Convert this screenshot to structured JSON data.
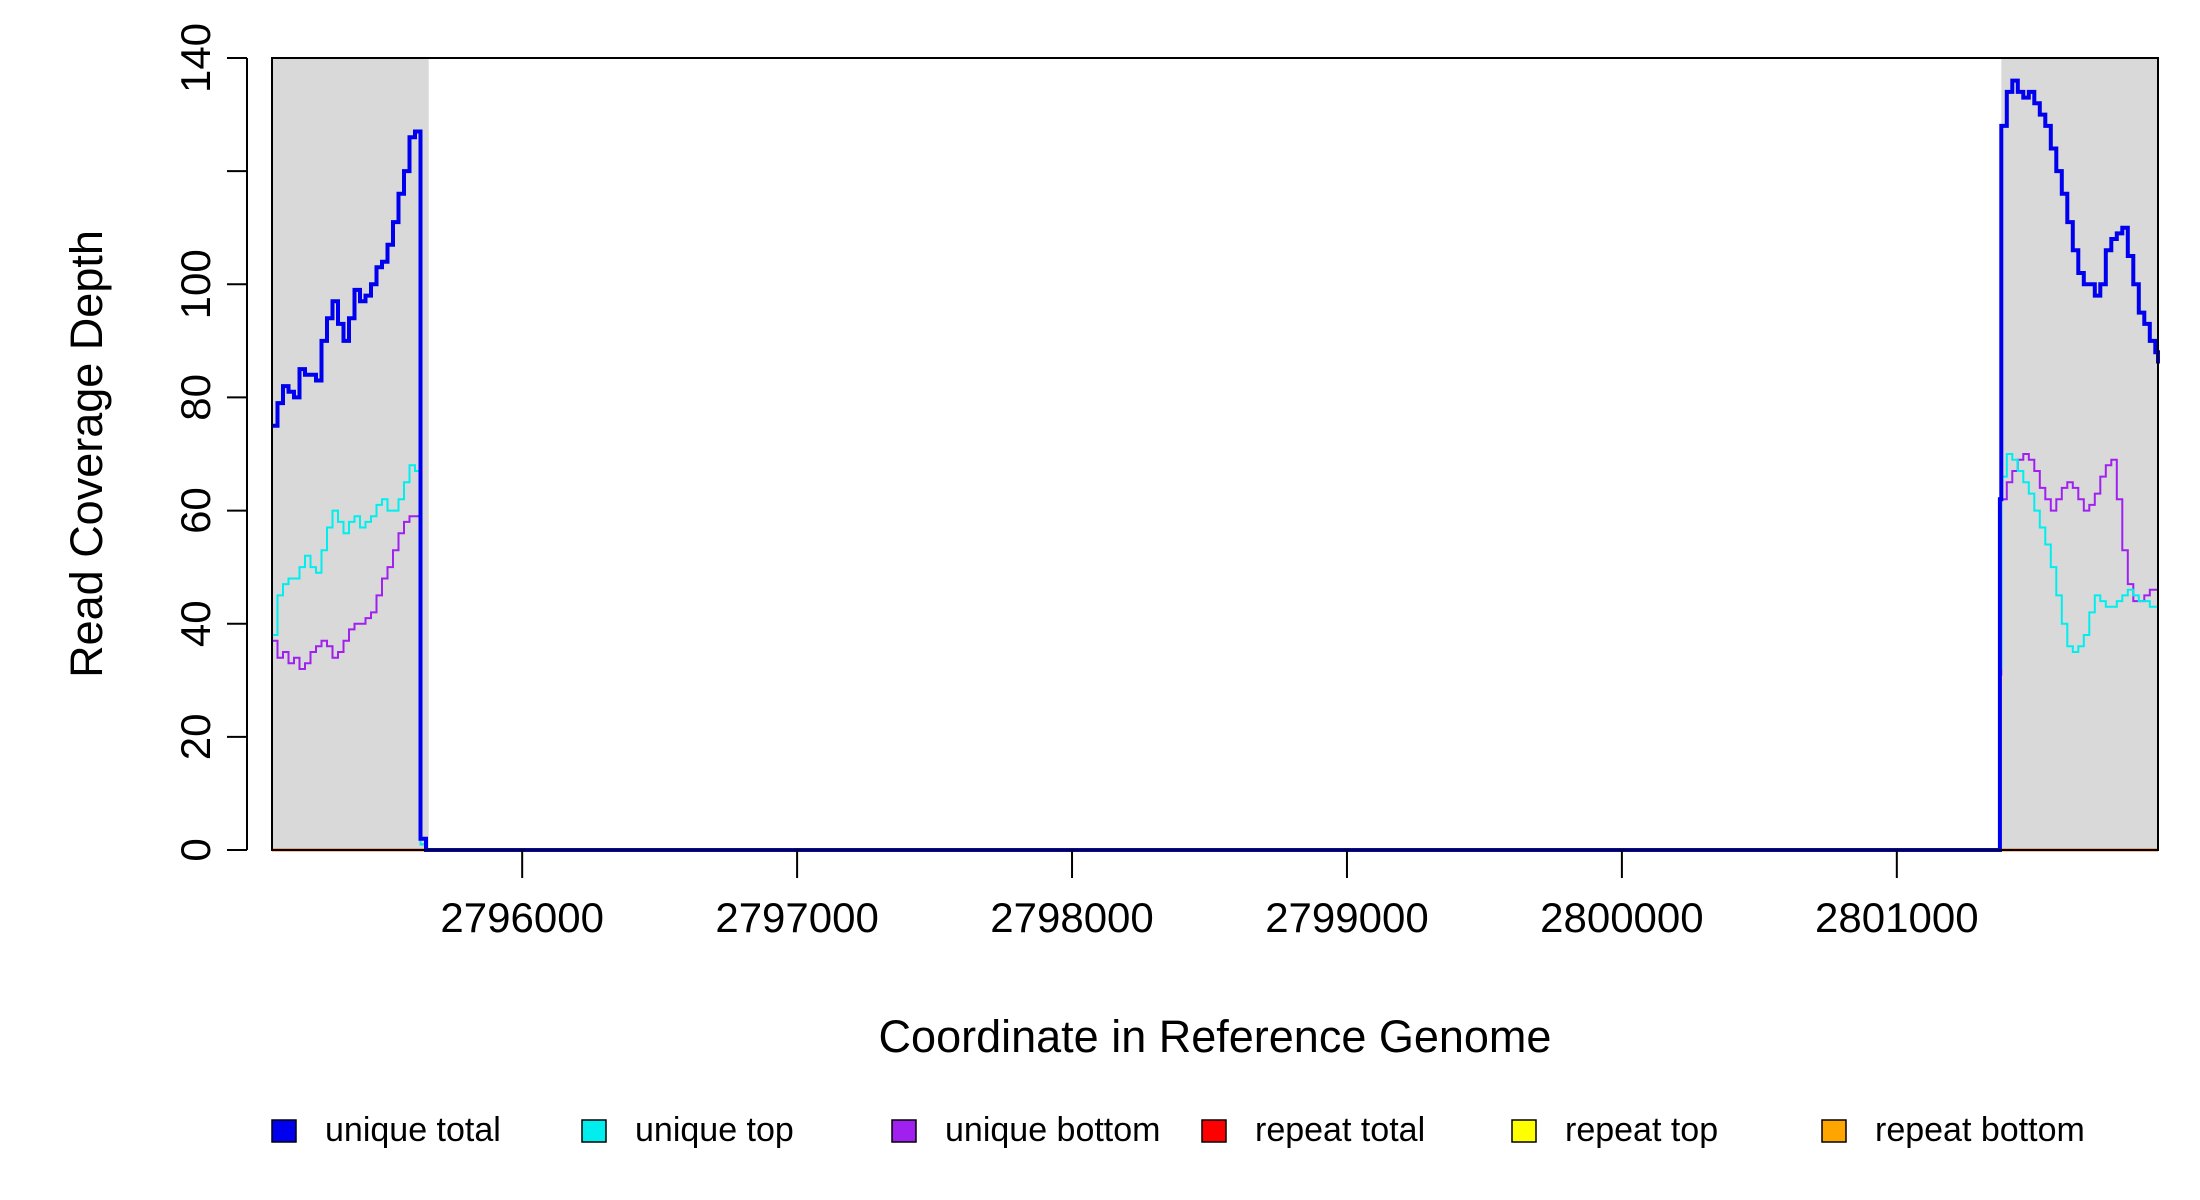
{
  "chart_data": {
    "type": "line",
    "title": "",
    "xlabel": "Coordinate in Reference Genome",
    "ylabel": "Read Coverage Depth",
    "xlim": [
      2795090,
      2801950
    ],
    "ylim": [
      0,
      140
    ],
    "x_ticks": [
      {
        "value": 2796000,
        "label": "2796000"
      },
      {
        "value": 2797000,
        "label": "2797000"
      },
      {
        "value": 2798000,
        "label": "2798000"
      },
      {
        "value": 2799000,
        "label": "2799000"
      },
      {
        "value": 2800000,
        "label": "2800000"
      },
      {
        "value": 2801000,
        "label": "2801000"
      }
    ],
    "y_ticks": [
      {
        "value": 0,
        "label": "0"
      },
      {
        "value": 20,
        "label": "20"
      },
      {
        "value": 40,
        "label": "40"
      },
      {
        "value": 60,
        "label": "60"
      },
      {
        "value": 80,
        "label": "80"
      },
      {
        "value": 100,
        "label": "100"
      },
      {
        "value": 120,
        "label": ""
      },
      {
        "value": 140,
        "label": "140"
      }
    ],
    "shaded_regions": [
      {
        "x0": 2795090,
        "x1": 2795660,
        "color": "#d9d9d9"
      },
      {
        "x0": 2801380,
        "x1": 2801950,
        "color": "#d9d9d9"
      }
    ],
    "grid": false,
    "legend_position": "bottom",
    "series": [
      {
        "name": "unique total",
        "color": "#0000ee",
        "x": [
          2795090,
          2795110,
          2795130,
          2795150,
          2795170,
          2795190,
          2795210,
          2795230,
          2795250,
          2795270,
          2795290,
          2795310,
          2795330,
          2795350,
          2795370,
          2795390,
          2795410,
          2795430,
          2795450,
          2795470,
          2795490,
          2795510,
          2795530,
          2795550,
          2795570,
          2795590,
          2795610,
          2795630,
          2795650,
          2795660,
          2795665,
          2795700,
          2796000,
          2797000,
          2798000,
          2799000,
          2800000,
          2801000,
          2801370,
          2801375,
          2801380,
          2801400,
          2801420,
          2801440,
          2801460,
          2801480,
          2801500,
          2801520,
          2801540,
          2801560,
          2801580,
          2801600,
          2801620,
          2801640,
          2801660,
          2801680,
          2801700,
          2801720,
          2801740,
          2801760,
          2801780,
          2801800,
          2801820,
          2801840,
          2801860,
          2801880,
          2801900,
          2801920,
          2801940,
          2801950
        ],
        "values": [
          75,
          79,
          82,
          81,
          80,
          85,
          84,
          84,
          83,
          90,
          94,
          97,
          93,
          90,
          94,
          99,
          97,
          98,
          100,
          103,
          104,
          107,
          111,
          116,
          120,
          126,
          127,
          2,
          0,
          0,
          0,
          0,
          0,
          0,
          0,
          0,
          0,
          0,
          0,
          62,
          128,
          134,
          136,
          134,
          133,
          134,
          132,
          130,
          128,
          124,
          120,
          116,
          111,
          106,
          102,
          100,
          100,
          98,
          100,
          106,
          108,
          109,
          110,
          105,
          100,
          95,
          93,
          90,
          88,
          86
        ]
      },
      {
        "name": "unique top",
        "color": "#00eeee",
        "x": [
          2795090,
          2795110,
          2795130,
          2795150,
          2795170,
          2795190,
          2795210,
          2795230,
          2795250,
          2795270,
          2795290,
          2795310,
          2795330,
          2795350,
          2795370,
          2795390,
          2795410,
          2795430,
          2795450,
          2795470,
          2795490,
          2795510,
          2795530,
          2795550,
          2795570,
          2795590,
          2795610,
          2795630,
          2795650,
          2795660,
          2795665,
          2795700,
          2796000,
          2797000,
          2798000,
          2799000,
          2800000,
          2801000,
          2801370,
          2801375,
          2801380,
          2801400,
          2801420,
          2801440,
          2801460,
          2801480,
          2801500,
          2801520,
          2801540,
          2801560,
          2801580,
          2801600,
          2801620,
          2801640,
          2801660,
          2801680,
          2801700,
          2801720,
          2801740,
          2801760,
          2801780,
          2801800,
          2801820,
          2801840,
          2801860,
          2801880,
          2801900,
          2801920,
          2801940,
          2801950
        ],
        "values": [
          38,
          45,
          47,
          48,
          48,
          50,
          52,
          50,
          49,
          53,
          57,
          60,
          58,
          56,
          58,
          59,
          57,
          58,
          59,
          61,
          62,
          60,
          60,
          62,
          65,
          68,
          67,
          1,
          0,
          0,
          0,
          0,
          0,
          0,
          0,
          0,
          0,
          0,
          0,
          32,
          66,
          70,
          69,
          67,
          65,
          63,
          60,
          57,
          54,
          50,
          45,
          40,
          36,
          35,
          36,
          38,
          42,
          45,
          44,
          43,
          43,
          44,
          45,
          46,
          45,
          44,
          44,
          43,
          43,
          42
        ]
      },
      {
        "name": "unique bottom",
        "color": "#a020f0",
        "x": [
          2795090,
          2795110,
          2795130,
          2795150,
          2795170,
          2795190,
          2795210,
          2795230,
          2795250,
          2795270,
          2795290,
          2795310,
          2795330,
          2795350,
          2795370,
          2795390,
          2795410,
          2795430,
          2795450,
          2795470,
          2795490,
          2795510,
          2795530,
          2795550,
          2795570,
          2795590,
          2795610,
          2795630,
          2795650,
          2795660,
          2795665,
          2795700,
          2796000,
          2797000,
          2798000,
          2799000,
          2800000,
          2801000,
          2801370,
          2801375,
          2801380,
          2801400,
          2801420,
          2801440,
          2801460,
          2801480,
          2801500,
          2801520,
          2801540,
          2801560,
          2801580,
          2801600,
          2801620,
          2801640,
          2801660,
          2801680,
          2801700,
          2801720,
          2801740,
          2801760,
          2801780,
          2801800,
          2801820,
          2801840,
          2801860,
          2801880,
          2801900,
          2801920,
          2801940,
          2801950
        ],
        "values": [
          37,
          34,
          35,
          33,
          34,
          32,
          33,
          35,
          36,
          37,
          36,
          34,
          35,
          37,
          39,
          40,
          40,
          41,
          42,
          45,
          48,
          50,
          53,
          56,
          58,
          59,
          59,
          1,
          0,
          0,
          0,
          0,
          0,
          0,
          0,
          0,
          0,
          0,
          0,
          31,
          62,
          65,
          67,
          69,
          70,
          69,
          67,
          64,
          62,
          60,
          62,
          64,
          65,
          64,
          62,
          60,
          61,
          63,
          66,
          68,
          69,
          62,
          53,
          47,
          44,
          44,
          45,
          46,
          46,
          45
        ]
      },
      {
        "name": "repeat total",
        "color": "#ff0000",
        "x": [
          2795090,
          2801950
        ],
        "values": [
          0,
          0
        ]
      },
      {
        "name": "repeat top",
        "color": "#ffff00",
        "x": [
          2795090,
          2801950
        ],
        "values": [
          0,
          0
        ]
      },
      {
        "name": "repeat bottom",
        "color": "#ffa500",
        "x": [
          2795090,
          2801950
        ],
        "values": [
          0,
          0
        ]
      }
    ]
  }
}
